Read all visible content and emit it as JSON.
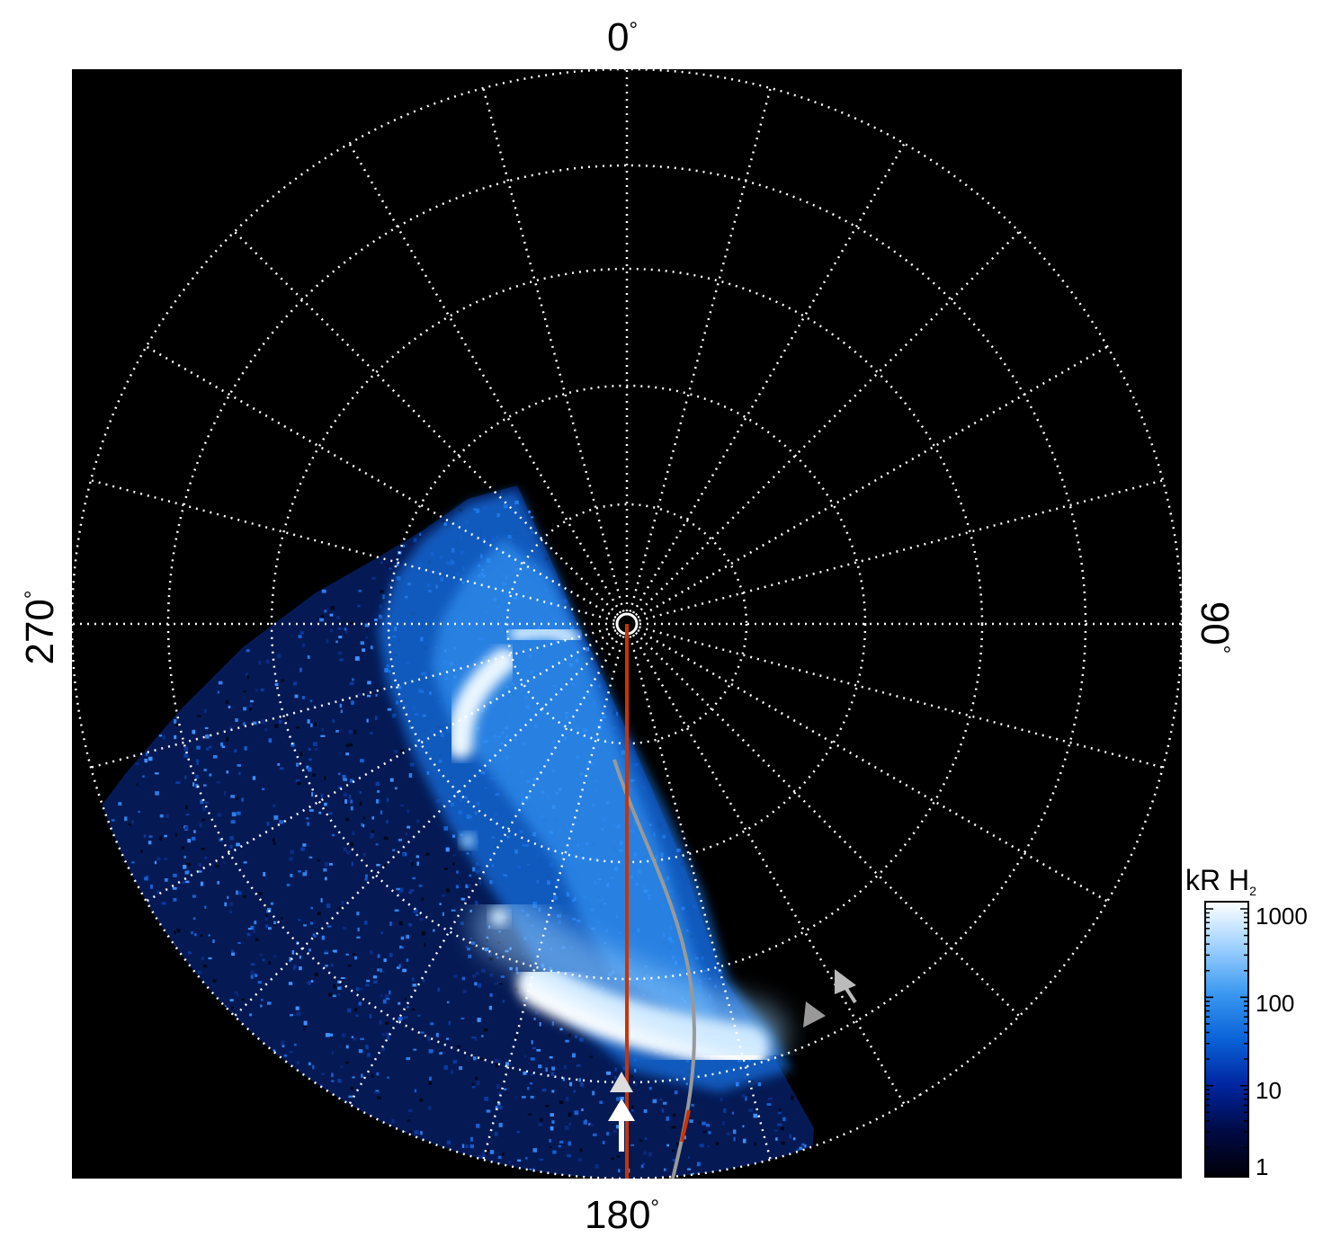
{
  "azimuth_labels": {
    "top": "0",
    "right": "90",
    "bottom": "180",
    "left": "270",
    "unit": "°"
  },
  "colorbar": {
    "title_main": "kR H",
    "title_sub": "2",
    "scale": "log",
    "ticks": [
      "1000",
      "100",
      "10",
      "1"
    ],
    "colors": [
      "#000008",
      "#000a44",
      "#0025a0",
      "#0a62d8",
      "#3a98f0",
      "#9dd0ff",
      "#ffffff"
    ]
  },
  "overlay": {
    "grid_color": "#ffffff",
    "meridian_color": "#cc3300",
    "curve_color": "#999999",
    "arrow_colors": [
      "#dddddd",
      "#ffffff",
      "#999999",
      "#bbbbbb"
    ]
  }
}
